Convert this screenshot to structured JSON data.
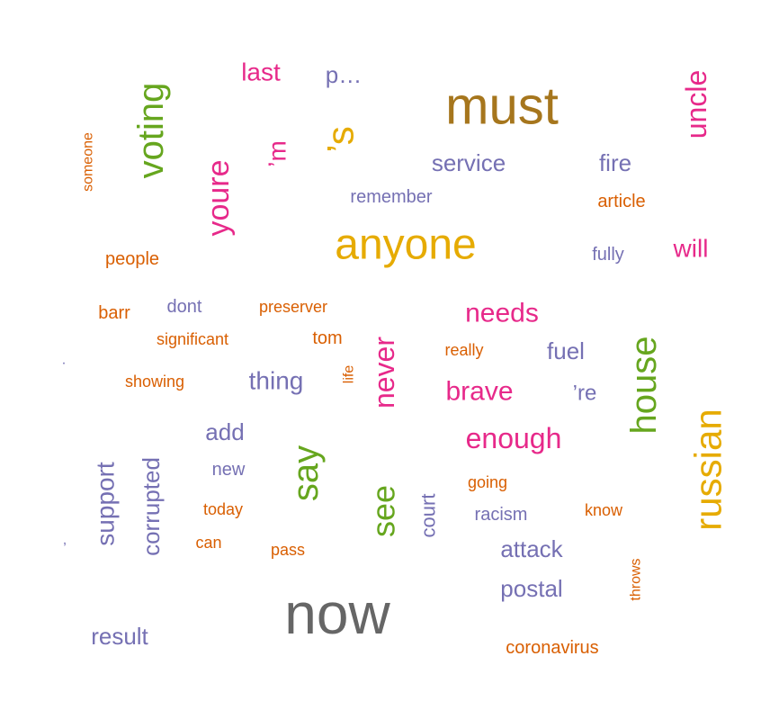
{
  "word_cloud": {
    "colors": {
      "pink": "#e7298a",
      "purple": "#7570b3",
      "orange": "#d95f02",
      "gold": "#e6ab02",
      "green": "#66a61e",
      "brown": "#a6761d",
      "grey": "#666666"
    },
    "words": [
      {
        "text": "now",
        "color": "grey",
        "rotated": false
      },
      {
        "text": "must",
        "color": "brown",
        "rotated": false
      },
      {
        "text": "anyone",
        "color": "gold",
        "rotated": false
      },
      {
        "text": "russian",
        "color": "gold",
        "rotated": true
      },
      {
        "text": "’s",
        "color": "gold",
        "rotated": true
      },
      {
        "text": "voting",
        "color": "green",
        "rotated": true
      },
      {
        "text": "house",
        "color": "green",
        "rotated": true
      },
      {
        "text": "say",
        "color": "green",
        "rotated": true
      },
      {
        "text": "see",
        "color": "green",
        "rotated": true
      },
      {
        "text": "youre",
        "color": "pink",
        "rotated": true
      },
      {
        "text": "uncle",
        "color": "pink",
        "rotated": true
      },
      {
        "text": "never",
        "color": "pink",
        "rotated": true
      },
      {
        "text": "’m",
        "color": "pink",
        "rotated": true
      },
      {
        "text": "last",
        "color": "pink",
        "rotated": false
      },
      {
        "text": "will",
        "color": "pink",
        "rotated": false
      },
      {
        "text": "needs",
        "color": "pink",
        "rotated": false
      },
      {
        "text": "brave",
        "color": "pink",
        "rotated": false
      },
      {
        "text": "enough",
        "color": "pink",
        "rotated": false
      },
      {
        "text": "p…",
        "color": "purple",
        "rotated": false
      },
      {
        "text": "service",
        "color": "purple",
        "rotated": false
      },
      {
        "text": "fire",
        "color": "purple",
        "rotated": false
      },
      {
        "text": "remember",
        "color": "purple",
        "rotated": false
      },
      {
        "text": "fully",
        "color": "purple",
        "rotated": false
      },
      {
        "text": "dont",
        "color": "purple",
        "rotated": false
      },
      {
        "text": "fuel",
        "color": "purple",
        "rotated": false
      },
      {
        "text": "thing",
        "color": "purple",
        "rotated": false
      },
      {
        "text": "’re",
        "color": "purple",
        "rotated": false
      },
      {
        "text": "add",
        "color": "purple",
        "rotated": false
      },
      {
        "text": "new",
        "color": "purple",
        "rotated": false
      },
      {
        "text": "racism",
        "color": "purple",
        "rotated": false
      },
      {
        "text": "attack",
        "color": "purple",
        "rotated": false
      },
      {
        "text": "postal",
        "color": "purple",
        "rotated": false
      },
      {
        "text": "result",
        "color": "purple",
        "rotated": false
      },
      {
        "text": "support",
        "color": "purple",
        "rotated": true
      },
      {
        "text": "corrupted",
        "color": "purple",
        "rotated": true
      },
      {
        "text": "court",
        "color": "purple",
        "rotated": true
      },
      {
        "text": ".",
        "color": "purple",
        "rotated": false
      },
      {
        "text": ",",
        "color": "purple",
        "rotated": false
      },
      {
        "text": "someone",
        "color": "orange",
        "rotated": true
      },
      {
        "text": "article",
        "color": "orange",
        "rotated": false
      },
      {
        "text": "people",
        "color": "orange",
        "rotated": false
      },
      {
        "text": "barr",
        "color": "orange",
        "rotated": false
      },
      {
        "text": "preserver",
        "color": "orange",
        "rotated": false
      },
      {
        "text": "significant",
        "color": "orange",
        "rotated": false
      },
      {
        "text": "tom",
        "color": "orange",
        "rotated": false
      },
      {
        "text": "really",
        "color": "orange",
        "rotated": false
      },
      {
        "text": "showing",
        "color": "orange",
        "rotated": false
      },
      {
        "text": "life",
        "color": "orange",
        "rotated": true
      },
      {
        "text": "going",
        "color": "orange",
        "rotated": false
      },
      {
        "text": "know",
        "color": "orange",
        "rotated": false
      },
      {
        "text": "today",
        "color": "orange",
        "rotated": false
      },
      {
        "text": "can",
        "color": "orange",
        "rotated": false
      },
      {
        "text": "pass",
        "color": "orange",
        "rotated": false
      },
      {
        "text": "throws",
        "color": "orange",
        "rotated": true
      },
      {
        "text": "coronavirus",
        "color": "orange",
        "rotated": false
      }
    ]
  }
}
